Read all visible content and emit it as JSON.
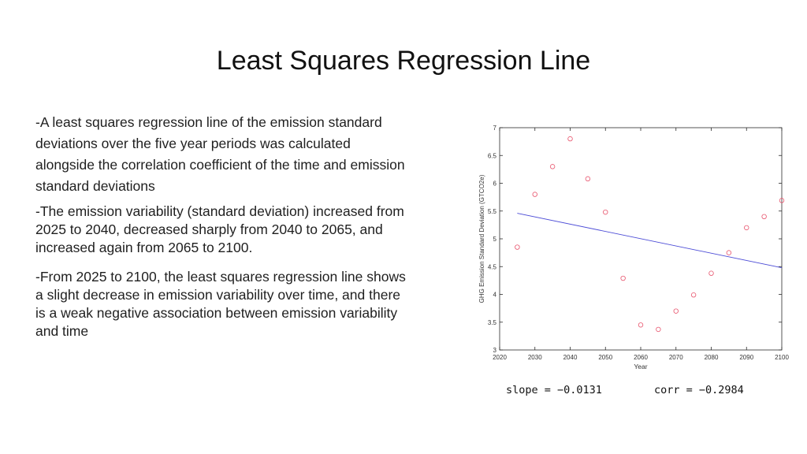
{
  "slide": {
    "title": "Least Squares Regression Line",
    "bullets": [
      "-A least squares regression line of the emission standard deviations over the five year periods was calculated alongside the correlation coefficient of the time and emission standard deviations",
      "-The emission variability (standard deviation) increased from 2025 to 2040, decreased sharply from 2040 to 2065, and increased again from 2065 to 2100.",
      "-From 2025 to 2100, the least squares regression line shows a slight decrease in emission variability over time, and there is a weak negative association between emission variability and time"
    ],
    "slope_text": "slope = −0.0131",
    "corr_text": "corr = −0.2984"
  },
  "chart_data": {
    "type": "scatter",
    "title": "",
    "xlabel": "Year",
    "ylabel": "GHG Emission Standard Deviation (GTCO2e)",
    "xlim": [
      2020,
      2100
    ],
    "ylim": [
      3,
      7
    ],
    "xticks": [
      "2020",
      "2030",
      "2040",
      "2050",
      "2060",
      "2070",
      "2080",
      "2090",
      "2100"
    ],
    "yticks": [
      "3",
      "3.5",
      "4",
      "4.5",
      "5",
      "5.5",
      "6",
      "6.5",
      "7"
    ],
    "grid": false,
    "series": [
      {
        "type": "scatter",
        "color": "#e8536c",
        "marker": "circle-open",
        "x": [
          2025,
          2030,
          2035,
          2040,
          2045,
          2050,
          2055,
          2060,
          2065,
          2070,
          2075,
          2080,
          2085,
          2090,
          2095,
          2100
        ],
        "y": [
          4.85,
          5.8,
          6.3,
          6.8,
          6.08,
          5.48,
          4.29,
          3.45,
          3.37,
          3.7,
          3.99,
          4.38,
          4.75,
          5.2,
          5.4,
          5.69
        ]
      },
      {
        "type": "line",
        "color": "#4a4ad6",
        "x": [
          2025,
          2100
        ],
        "y": [
          5.46,
          4.48
        ]
      }
    ]
  }
}
